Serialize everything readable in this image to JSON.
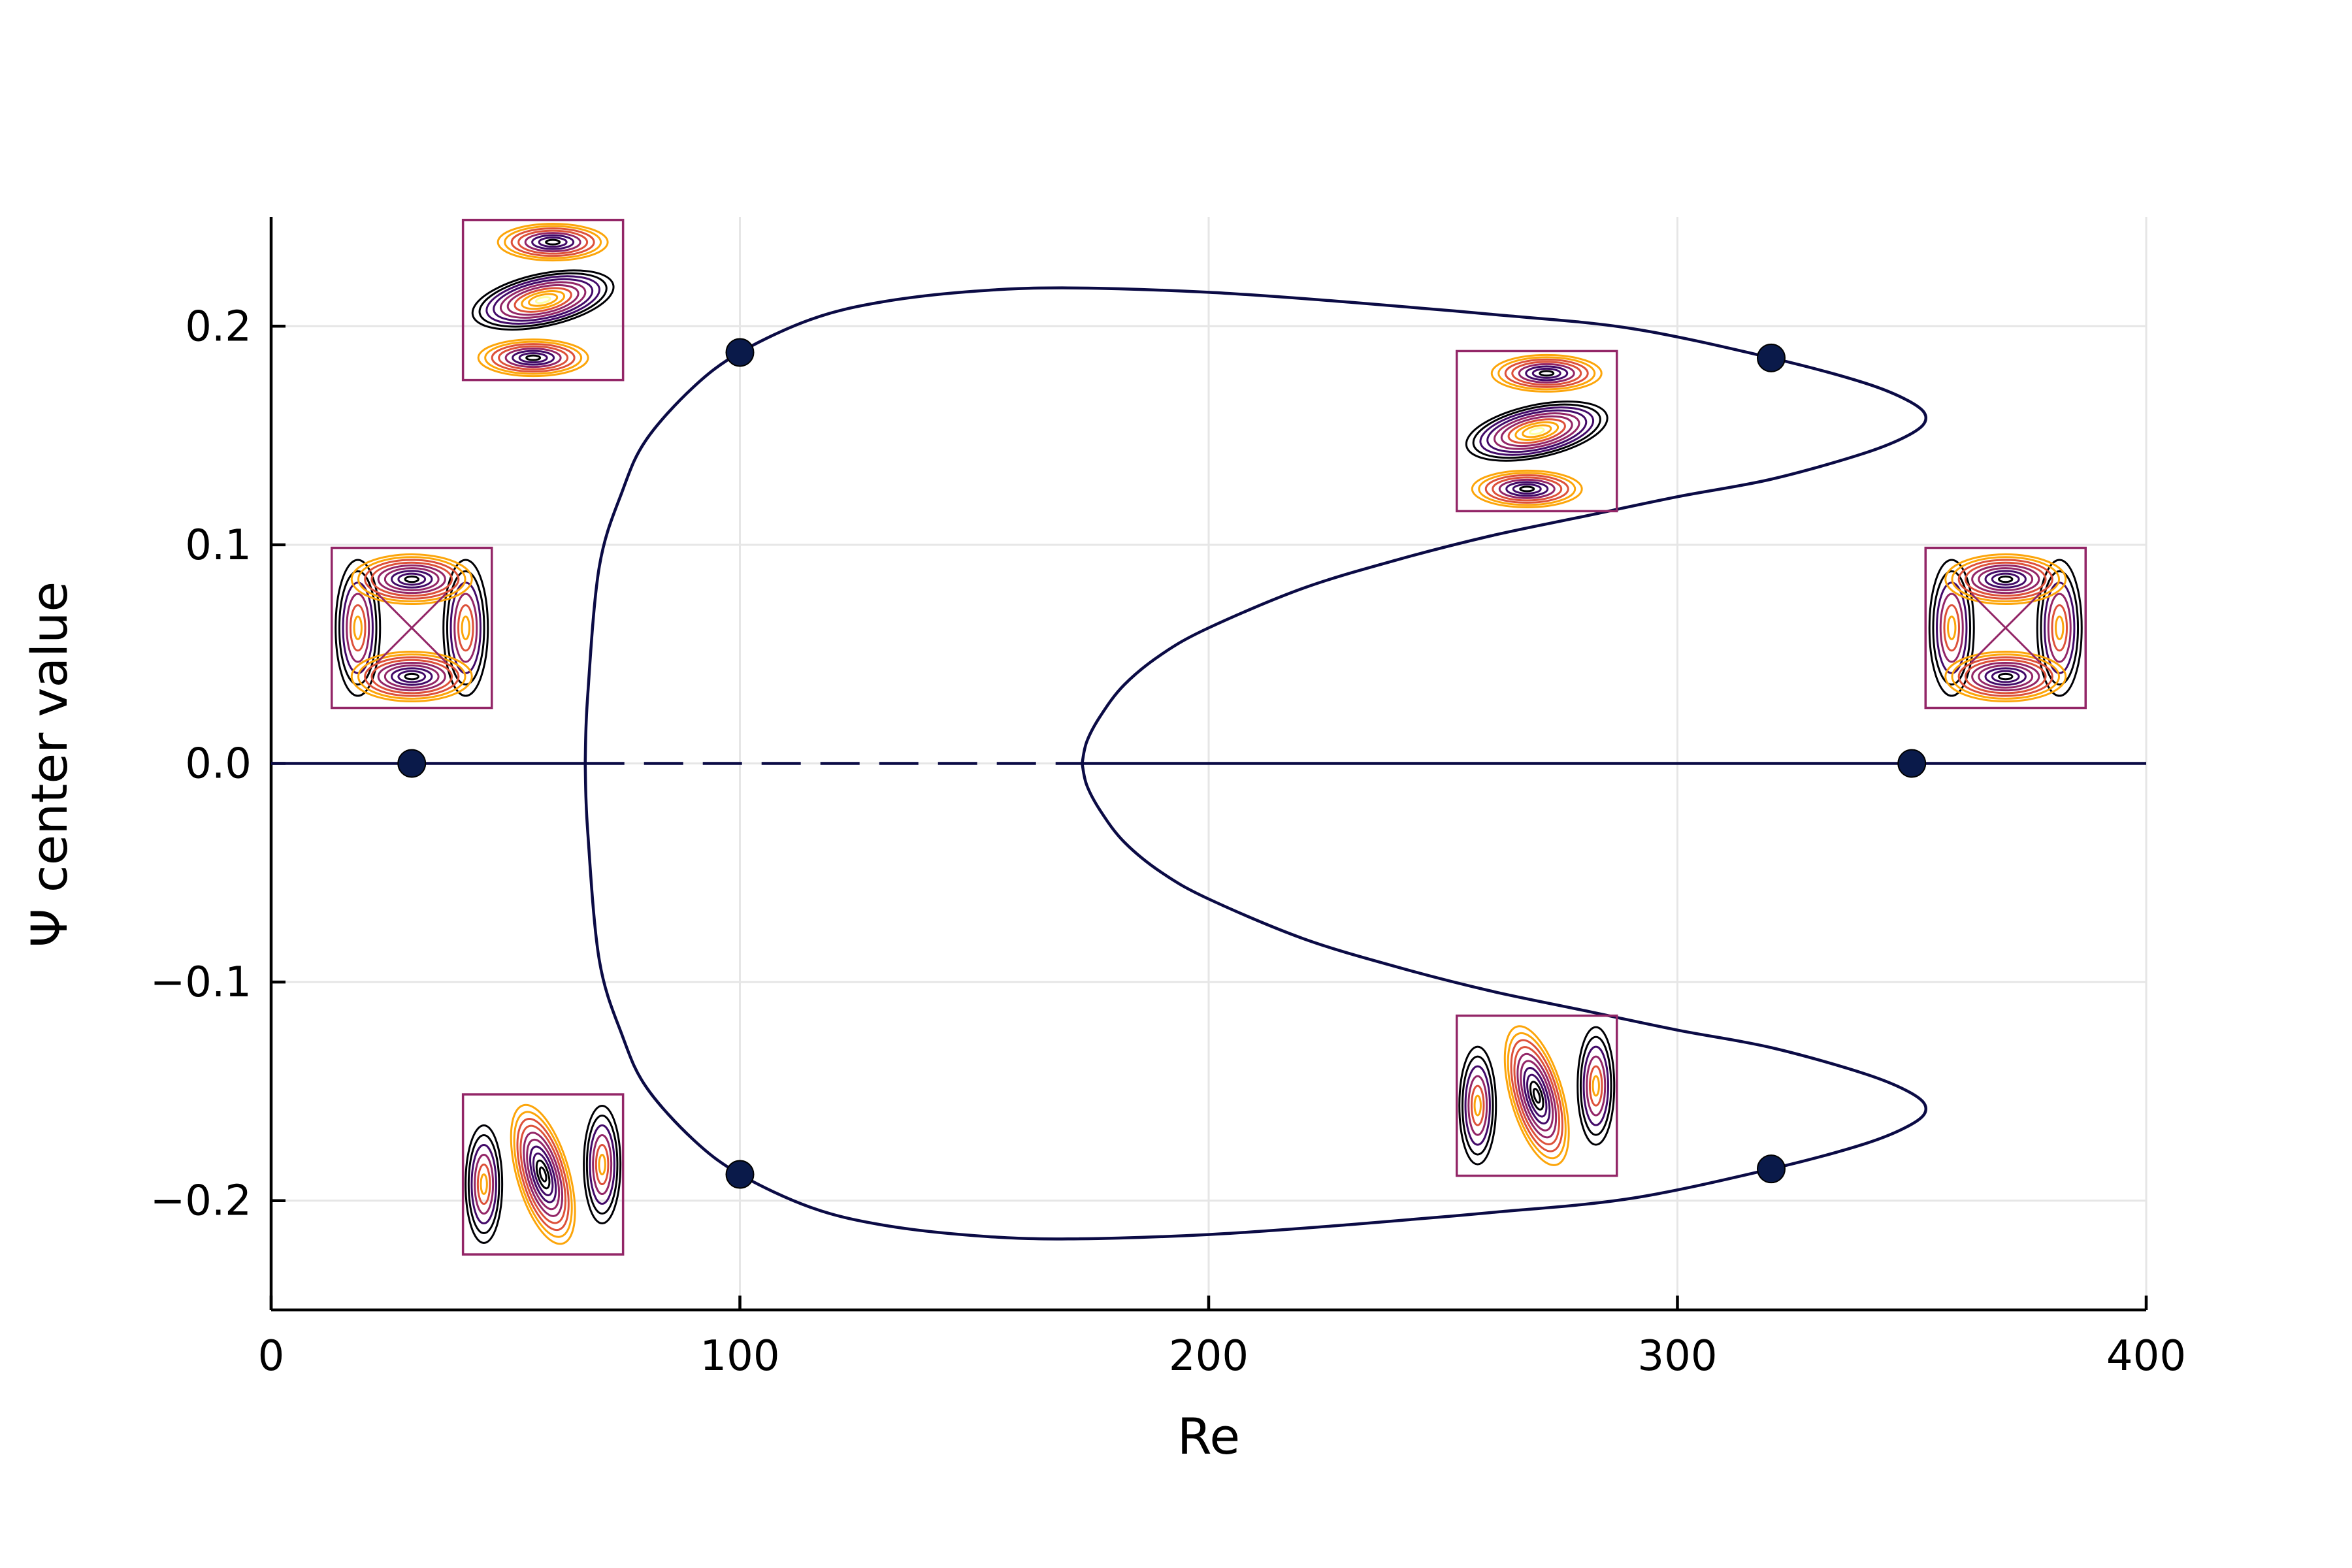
{
  "chart_data": {
    "type": "line",
    "title": "",
    "xlabel": "Re",
    "ylabel": "Ψ center value",
    "xlim": [
      0,
      400
    ],
    "ylim": [
      -0.25,
      0.25
    ],
    "xticks": [
      0,
      100,
      200,
      300,
      400
    ],
    "xtick_labels": [
      "0",
      "100",
      "200",
      "300",
      "400"
    ],
    "yticks": [
      0.2,
      0.1,
      0.0,
      -0.1,
      -0.2
    ],
    "ytick_labels": [
      "0.2",
      "0.1",
      "0.0",
      "−0.1",
      "−0.2"
    ],
    "grid": true,
    "legend": "none",
    "colors": {
      "curve": "#0b0b45",
      "marker": "#0a1a4a",
      "grid": "#e6e6e6",
      "axis": "#000000",
      "inferno_low": "#000004",
      "inferno_dark": "#420a68",
      "inferno_mid": "#932667",
      "inferno_orange": "#dd513a",
      "inferno_amber": "#fca50a",
      "inferno_high": "#fcffa4"
    },
    "series": [
      {
        "style": "solid",
        "x": [
          0,
          67
        ],
        "y": [
          0,
          0
        ]
      },
      {
        "style": "dashed",
        "x": [
          67,
          173
        ],
        "y": [
          0,
          0
        ]
      },
      {
        "style": "solid",
        "x": [
          173,
          400
        ],
        "y": [
          0,
          0
        ]
      },
      {
        "style": "solid",
        "x": [
          67,
          67.5,
          70,
          75,
          80,
          90,
          100,
          115,
          130,
          150,
          170,
          200,
          230,
          260,
          290,
          320,
          340,
          350,
          353,
          350,
          340,
          320,
          300,
          280,
          260,
          240,
          220,
          200,
          190,
          182,
          177,
          174,
          173
        ],
        "y": [
          0,
          0.03,
          0.09,
          0.125,
          0.148,
          0.172,
          0.188,
          0.203,
          0.211,
          0.216,
          0.2175,
          0.2155,
          0.211,
          0.2055,
          0.199,
          0.1855,
          0.174,
          0.165,
          0.158,
          0.151,
          0.142,
          0.13,
          0.122,
          0.113,
          0.104,
          0.093,
          0.08,
          0.062,
          0.05,
          0.036,
          0.022,
          0.01,
          0
        ]
      },
      {
        "style": "solid",
        "x": [
          67,
          67.5,
          70,
          75,
          80,
          90,
          100,
          115,
          130,
          150,
          170,
          200,
          230,
          260,
          290,
          320,
          340,
          350,
          353,
          350,
          340,
          320,
          300,
          280,
          260,
          240,
          220,
          200,
          190,
          182,
          177,
          174,
          173
        ],
        "y": [
          0,
          -0.03,
          -0.09,
          -0.125,
          -0.148,
          -0.172,
          -0.188,
          -0.203,
          -0.211,
          -0.216,
          -0.2175,
          -0.2155,
          -0.211,
          -0.2055,
          -0.199,
          -0.1855,
          -0.174,
          -0.165,
          -0.158,
          -0.151,
          -0.142,
          -0.13,
          -0.122,
          -0.113,
          -0.104,
          -0.093,
          -0.08,
          -0.062,
          -0.05,
          -0.036,
          -0.022,
          -0.01,
          0
        ]
      }
    ],
    "markers": {
      "x": [
        30,
        100,
        100,
        320,
        320,
        350
      ],
      "y": [
        0,
        0.188,
        -0.188,
        0.1855,
        -0.1855,
        0
      ]
    },
    "contour_insets": [
      {
        "pattern": "symmetric",
        "x": 30,
        "y": 0.062
      },
      {
        "pattern": "tilted-positive",
        "x": 58,
        "y": 0.212
      },
      {
        "pattern": "tilted-negative",
        "x": 58,
        "y": -0.188
      },
      {
        "pattern": "tilted-positive",
        "x": 270,
        "y": 0.152
      },
      {
        "pattern": "tilted-negative",
        "x": 270,
        "y": -0.152
      },
      {
        "pattern": "symmetric",
        "x": 370,
        "y": 0.062
      }
    ]
  }
}
